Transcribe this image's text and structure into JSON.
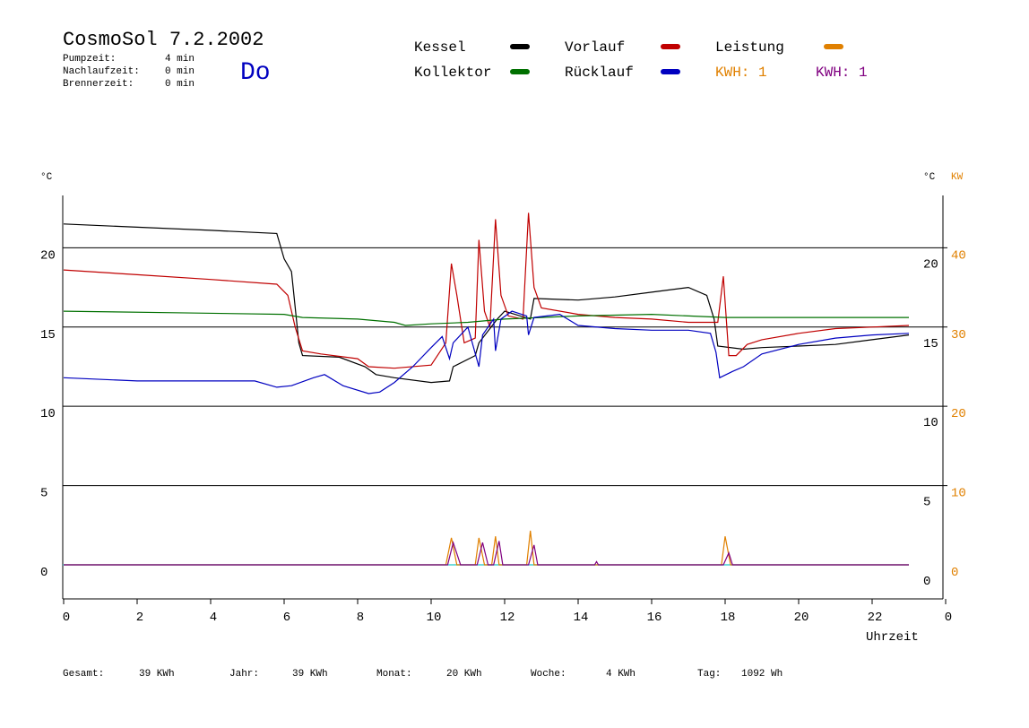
{
  "header": {
    "title": "CosmoSol 7.2.2002",
    "day": "Do",
    "stats": [
      [
        "Pumpzeit:",
        "4 min"
      ],
      [
        "Nachlaufzeit:",
        "0 min"
      ],
      [
        "Brennerzeit:",
        "0 min"
      ]
    ]
  },
  "legend_extra": [
    {
      "text": "KWH: 1",
      "color": "#e08000"
    },
    {
      "text": "KWH: 1",
      "color": "#800080"
    }
  ],
  "footer": [
    [
      "Gesamt:",
      "39 KWh"
    ],
    [
      "Jahr:",
      "39 KWh"
    ],
    [
      "Monat:",
      "20 KWh"
    ],
    [
      "Woche:",
      "4 KWh"
    ],
    [
      "Tag:",
      "1092 Wh"
    ]
  ],
  "chart_data": {
    "type": "line",
    "xlabel": "Uhrzeit",
    "ylabel": "°C",
    "y2label_left": "°C",
    "y2label": "KW",
    "xlim": [
      0,
      24
    ],
    "xticks": [
      0,
      2,
      4,
      6,
      8,
      10,
      12,
      14,
      16,
      18,
      20,
      22,
      {
        "value": 24,
        "label": "0"
      }
    ],
    "ylim": [
      -2.15,
      23.3
    ],
    "yticks": [
      0,
      5,
      10,
      15,
      20
    ],
    "y2lim": [
      -4.3,
      46.6
    ],
    "y2ticks": [
      0,
      10,
      20,
      30,
      40
    ],
    "grid": true,
    "baseline_color": "#40d0d0",
    "series": [
      {
        "name": "Kessel",
        "color": "#000000",
        "x": [
          0,
          2,
          4,
          5.8,
          6.0,
          6.2,
          6.4,
          6.5,
          7.5,
          8.2,
          8.5,
          9,
          10,
          10.5,
          10.6,
          11.2,
          11.3,
          11.8,
          12,
          12.7,
          12.8,
          14,
          15,
          16,
          17,
          17.5,
          17.7,
          17.8,
          18.5,
          19,
          20,
          21,
          22,
          23
        ],
        "values": [
          21.5,
          21.3,
          21.1,
          20.9,
          19.3,
          18.5,
          14,
          13.2,
          13.1,
          12.5,
          12,
          11.8,
          11.5,
          11.6,
          12.5,
          13.2,
          14,
          15.5,
          16,
          15.5,
          16.8,
          16.7,
          16.9,
          17.2,
          17.5,
          17.0,
          15.5,
          13.8,
          13.6,
          13.7,
          13.8,
          13.9,
          14.2,
          14.5
        ]
      },
      {
        "name": "Vorlauf",
        "color": "#c00000",
        "x": [
          0,
          2,
          4,
          5.8,
          6.1,
          6.3,
          6.5,
          7,
          8,
          8.3,
          9,
          10,
          10.4,
          10.55,
          10.7,
          10.9,
          11.2,
          11.3,
          11.45,
          11.6,
          11.75,
          11.9,
          12.1,
          12.5,
          12.65,
          12.8,
          13,
          14,
          15,
          16,
          17,
          17.8,
          17.95,
          18.1,
          18.3,
          18.6,
          19,
          20,
          21,
          22,
          23
        ],
        "values": [
          18.6,
          18.3,
          18.0,
          17.7,
          17,
          15,
          13.5,
          13.3,
          13,
          12.5,
          12.4,
          12.6,
          14,
          19,
          17,
          14,
          14.3,
          20.5,
          16,
          15,
          21.8,
          17,
          15.7,
          15.5,
          22.2,
          17.5,
          16.2,
          15.8,
          15.6,
          15.5,
          15.3,
          15.3,
          18.2,
          13.2,
          13.2,
          13.9,
          14.2,
          14.6,
          14.9,
          15.0,
          15.1
        ]
      },
      {
        "name": "Leistung",
        "color": "#e08000",
        "axis": "y2",
        "x": [
          0,
          10.4,
          10.55,
          10.7,
          11.2,
          11.3,
          11.45,
          11.65,
          11.75,
          11.85,
          12.6,
          12.7,
          12.8,
          17.9,
          18.0,
          18.15,
          23
        ],
        "values": [
          0,
          0,
          3.4,
          0,
          0,
          3.4,
          0,
          0,
          3.6,
          0,
          0,
          4.3,
          0,
          0,
          3.6,
          0,
          0
        ]
      },
      {
        "name": "Kollektor",
        "color": "#007000",
        "x": [
          0,
          3,
          6,
          6.5,
          8,
          9,
          9.3,
          10,
          11,
          12,
          13,
          14,
          16,
          17,
          18,
          20,
          23
        ],
        "values": [
          16,
          15.9,
          15.8,
          15.6,
          15.5,
          15.3,
          15.1,
          15.2,
          15.3,
          15.5,
          15.6,
          15.7,
          15.8,
          15.7,
          15.6,
          15.6,
          15.6
        ]
      },
      {
        "name": "Rücklauf",
        "color": "#0000c0",
        "x": [
          0,
          2,
          4,
          5.2,
          5.8,
          6.2,
          6.8,
          7.1,
          7.6,
          8.3,
          8.6,
          9,
          9.5,
          10,
          10.3,
          10.5,
          10.6,
          11,
          11.3,
          11.4,
          11.7,
          11.75,
          11.9,
          12.2,
          12.6,
          12.65,
          12.8,
          13.5,
          14,
          15,
          16,
          17,
          17.6,
          17.75,
          17.85,
          18.2,
          18.5,
          19,
          20,
          21,
          22,
          23
        ],
        "values": [
          11.8,
          11.6,
          11.6,
          11.6,
          11.2,
          11.3,
          11.8,
          12.0,
          11.3,
          10.8,
          10.9,
          11.5,
          12.5,
          13.7,
          14.4,
          13,
          14,
          15,
          12.5,
          14.5,
          15.5,
          13.5,
          15.5,
          16,
          15.7,
          14.5,
          15.6,
          15.8,
          15.1,
          14.9,
          14.8,
          14.8,
          14.6,
          13.4,
          11.8,
          12.2,
          12.5,
          13.3,
          13.9,
          14.3,
          14.5,
          14.6
        ]
      },
      {
        "color": "#800080",
        "axis": "y2",
        "x": [
          0,
          10.45,
          10.6,
          10.8,
          11.25,
          11.4,
          11.55,
          11.7,
          11.85,
          11.95,
          12.65,
          12.8,
          12.9,
          14.45,
          14.5,
          14.55,
          17.95,
          18.1,
          18.2,
          23
        ],
        "values": [
          0,
          0,
          2.8,
          0,
          0,
          2.8,
          0,
          0,
          3.0,
          0,
          0,
          2.5,
          0,
          0,
          0.4,
          0,
          0,
          1.5,
          0,
          0
        ]
      }
    ]
  }
}
